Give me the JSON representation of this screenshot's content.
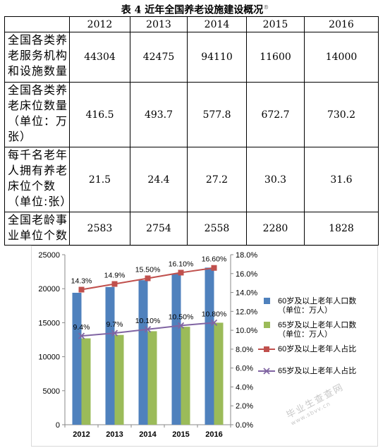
{
  "table": {
    "caption": "表 4   近年全国养老设施建设概况",
    "caption_note": "®",
    "headers": [
      "",
      "2012",
      "2013",
      "2014",
      "2015",
      "2016"
    ],
    "rows": [
      {
        "label": "全国各类养老服务机构和设施数量",
        "values": [
          "44304",
          "42475",
          "94110",
          "11600",
          "14000"
        ]
      },
      {
        "label": "全国各类养老床位数量（单位：万张）",
        "values": [
          "416.5",
          "493.7",
          "577.8",
          "672.7",
          "730.2"
        ]
      },
      {
        "label": "每千名老年人拥有养老床位个数（单位:张）",
        "values": [
          "21.5",
          "24.4",
          "27.2",
          "30.3",
          "31.6"
        ]
      },
      {
        "label": "全国老龄事业单位个数",
        "values": [
          "2583",
          "2754",
          "2558",
          "2280",
          "1828"
        ]
      }
    ]
  },
  "chart_data": {
    "type": "bar",
    "categories": [
      "2012",
      "2013",
      "2014",
      "2015",
      "2016"
    ],
    "y_left": {
      "ticks": [
        "0",
        "5000",
        "10000",
        "15000",
        "20000",
        "25000"
      ],
      "range": [
        0,
        25000
      ]
    },
    "y_right": {
      "ticks": [
        "0.0%",
        "2.0%",
        "4.0%",
        "6.0%",
        "8.0%",
        "10.0%",
        "12.0%",
        "14.0%",
        "16.0%",
        "18.0%"
      ],
      "range": [
        0,
        18
      ]
    },
    "series": [
      {
        "name": "60岁及以上老年人口数（单位：万人）",
        "legend_lines": [
          "60岁及以上老年人口数",
          "（单位：万人）"
        ],
        "kind": "bar",
        "axis": "left",
        "color": "#4f81bd",
        "values": [
          19400,
          20250,
          21250,
          22200,
          23100
        ]
      },
      {
        "name": "65岁及以上老年人口数（单位：万人）",
        "legend_lines": [
          "65岁及以上老年人口数",
          "（单位：万人）"
        ],
        "kind": "bar",
        "axis": "left",
        "color": "#9bbb59",
        "values": [
          12700,
          13200,
          13750,
          14400,
          15000
        ]
      },
      {
        "name": "60岁及以上老年人占比",
        "legend_lines": [
          "60岁及以上老年人占比"
        ],
        "kind": "line",
        "axis": "right",
        "color": "#c0504d",
        "marker": "square",
        "values": [
          14.3,
          14.9,
          15.5,
          16.1,
          16.6
        ],
        "labels": [
          "14.3%",
          "14.9%",
          "15.50%",
          "16.10%",
          "16.60%"
        ]
      },
      {
        "name": "65岁及以上老年人占比",
        "legend_lines": [
          "65岁及以上老年人占比"
        ],
        "kind": "line",
        "axis": "right",
        "color": "#8064a2",
        "marker": "x",
        "values": [
          9.4,
          9.7,
          10.1,
          10.5,
          10.8
        ],
        "labels": [
          "9.4%",
          "9.7%",
          "10.10%",
          "10.50%",
          "10.80%"
        ]
      }
    ],
    "legend_position": "right",
    "grid": false
  },
  "watermark": {
    "text": "毕业生查查网",
    "sub": "www.sbvv.cn"
  }
}
